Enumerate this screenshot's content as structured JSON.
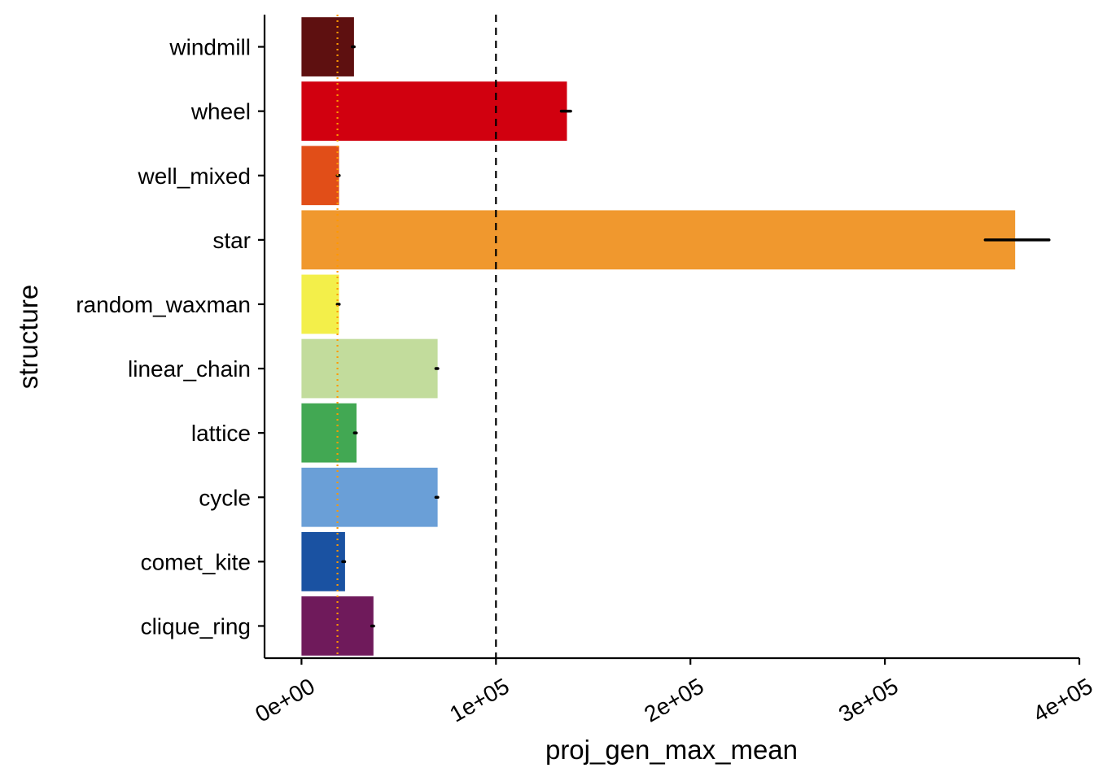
{
  "chart_data": {
    "type": "bar",
    "orientation": "horizontal",
    "xlabel": "proj_gen_max_mean",
    "ylabel": "structure",
    "xlim": [
      -19000,
      400000
    ],
    "x_ticks": [
      0,
      100000,
      200000,
      300000,
      400000
    ],
    "x_tick_labels": [
      "0e+00",
      "1e+05",
      "2e+05",
      "3e+05",
      "4e+05"
    ],
    "categories": [
      "windmill",
      "wheel",
      "well_mixed",
      "star",
      "random_waxman",
      "linear_chain",
      "lattice",
      "cycle",
      "comet_kite",
      "clique_ring"
    ],
    "values": [
      27000,
      136500,
      19300,
      367000,
      19300,
      70000,
      28300,
      70000,
      22400,
      37000
    ],
    "errors": [
      {
        "low": 26500,
        "high": 26700
      },
      {
        "low": 134000,
        "high": 138000
      },
      {
        "low": 18800,
        "high": 19000
      },
      {
        "low": 352000,
        "high": 384000
      },
      {
        "low": 18800,
        "high": 19000
      },
      {
        "low": 69500,
        "high": 69700
      },
      {
        "low": 27600,
        "high": 27800
      },
      {
        "low": 69500,
        "high": 69700
      },
      {
        "low": 21600,
        "high": 21800
      },
      {
        "low": 36500,
        "high": 36700
      }
    ],
    "colors": [
      "#5E1010",
      "#D1000F",
      "#E14E18",
      "#F0982E",
      "#F3EF4A",
      "#C2DC9C",
      "#42A853",
      "#6A9FD7",
      "#1A52A2",
      "#6F1A5B"
    ],
    "reference_lines": [
      {
        "value": 100000,
        "style": "dashed",
        "color": "#000000"
      },
      {
        "value": 18500,
        "style": "dotted",
        "color": "#FF9900"
      }
    ],
    "grid": false,
    "legend": "none"
  }
}
